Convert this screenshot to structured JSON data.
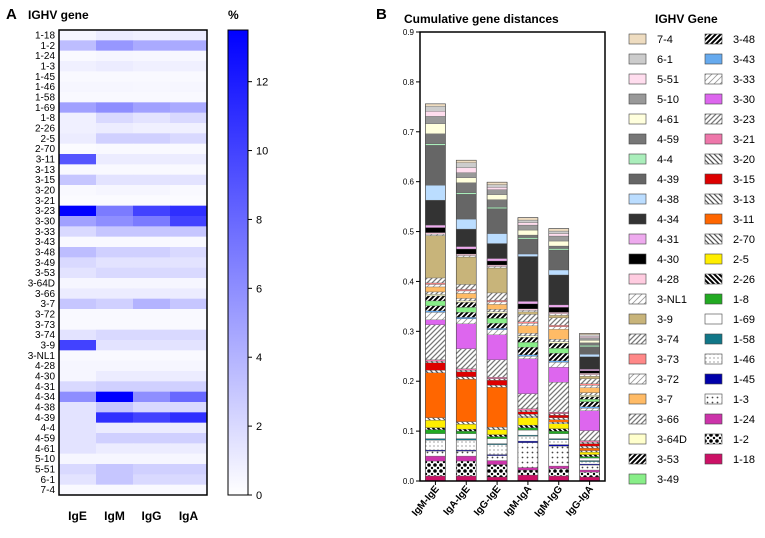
{
  "panels": {
    "a_letter": "A",
    "b_letter": "B"
  },
  "heatmap": {
    "title": "IGHV gene",
    "colorbar_title": "%",
    "colorbar_ticks": [
      0,
      2,
      4,
      6,
      8,
      10,
      12
    ],
    "colorbar_max": 13.5,
    "columns": [
      "IgE",
      "IgM",
      "IgG",
      "IgA"
    ],
    "rows": [
      "1-18",
      "1-2",
      "1-24",
      "1-3",
      "1-45",
      "1-46",
      "1-58",
      "1-69",
      "1-8",
      "2-26",
      "2-5",
      "2-70",
      "3-11",
      "3-13",
      "3-15",
      "3-20",
      "3-21",
      "3-23",
      "3-30",
      "3-33",
      "3-43",
      "3-48",
      "3-49",
      "3-53",
      "3-64D",
      "3-66",
      "3-7",
      "3-72",
      "3-73",
      "3-74",
      "3-9",
      "3-NL1",
      "4-28",
      "4-30",
      "4-31",
      "4-34",
      "4-38",
      "4-39",
      "4-4",
      "4-59",
      "4-61",
      "5-10",
      "5-51",
      "6-1",
      "7-4"
    ],
    "values": [
      [
        0.5,
        1.0,
        0.8,
        1.0
      ],
      [
        3.5,
        5.5,
        4.5,
        4.5
      ],
      [
        0.3,
        0.5,
        0.4,
        0.4
      ],
      [
        0.8,
        1.0,
        0.8,
        0.8
      ],
      [
        0.3,
        0.3,
        0.3,
        0.3
      ],
      [
        0.5,
        0.5,
        0.4,
        0.5
      ],
      [
        0.3,
        0.3,
        0.3,
        0.3
      ],
      [
        5.0,
        6.0,
        5.0,
        4.5
      ],
      [
        0.8,
        2.0,
        1.5,
        2.0
      ],
      [
        0.8,
        1.0,
        0.8,
        0.8
      ],
      [
        1.0,
        2.5,
        2.5,
        2.0
      ],
      [
        0.2,
        0.3,
        0.3,
        0.3
      ],
      [
        9.0,
        1.0,
        1.0,
        1.0
      ],
      [
        0.3,
        0.3,
        0.3,
        0.3
      ],
      [
        3.0,
        1.5,
        1.5,
        1.5
      ],
      [
        0.3,
        0.5,
        0.5,
        0.3
      ],
      [
        0.2,
        0.2,
        0.2,
        0.2
      ],
      [
        13.5,
        7.0,
        10.0,
        11.0
      ],
      [
        5.0,
        6.0,
        7.0,
        10.0
      ],
      [
        2.0,
        3.0,
        3.0,
        3.0
      ],
      [
        0.3,
        0.3,
        0.3,
        0.3
      ],
      [
        3.5,
        2.5,
        2.5,
        2.0
      ],
      [
        2.0,
        1.5,
        1.5,
        1.5
      ],
      [
        1.5,
        2.0,
        2.0,
        2.0
      ],
      [
        0.5,
        0.5,
        0.5,
        0.5
      ],
      [
        1.0,
        1.0,
        1.0,
        1.0
      ],
      [
        3.0,
        2.5,
        4.0,
        3.0
      ],
      [
        0.3,
        0.3,
        0.3,
        0.3
      ],
      [
        0.3,
        0.3,
        0.3,
        0.3
      ],
      [
        1.5,
        2.0,
        2.0,
        2.0
      ],
      [
        10.0,
        1.5,
        1.5,
        1.5
      ],
      [
        0.3,
        0.3,
        0.3,
        0.3
      ],
      [
        0.5,
        0.5,
        0.5,
        0.5
      ],
      [
        0.5,
        1.0,
        1.0,
        1.0
      ],
      [
        2.0,
        2.5,
        2.5,
        2.5
      ],
      [
        6.0,
        13.5,
        6.0,
        8.0
      ],
      [
        1.5,
        3.0,
        2.0,
        2.0
      ],
      [
        1.5,
        11.0,
        10.0,
        11.0
      ],
      [
        1.5,
        1.0,
        1.0,
        1.0
      ],
      [
        1.5,
        2.5,
        2.5,
        2.5
      ],
      [
        1.5,
        1.0,
        1.0,
        1.0
      ],
      [
        0.5,
        0.5,
        0.5,
        0.5
      ],
      [
        2.0,
        3.0,
        2.5,
        2.5
      ],
      [
        1.5,
        3.0,
        2.0,
        2.0
      ],
      [
        0.3,
        0.3,
        0.3,
        0.3
      ]
    ]
  },
  "chart_data": {
    "type": "bar",
    "stacked": true,
    "title": "Cumulative gene distances",
    "legend_title": "IGHV Gene",
    "categories": [
      "IgM-IgE",
      "IgA-IgE",
      "IgG-IgE",
      "IgM-IgA",
      "IgM-IgG",
      "IgG-IgA"
    ],
    "ylim": [
      0,
      0.9
    ],
    "yticks": [
      0.0,
      0.1,
      0.2,
      0.3,
      0.4,
      0.5,
      0.6,
      0.7,
      0.8,
      0.9
    ],
    "ytick_labels": [
      "0.0",
      "0.1",
      "0.2",
      "0.3",
      "0.4",
      "0.5",
      "0.6",
      "0.7",
      "0.8",
      "0.9"
    ],
    "series": [
      {
        "name": "1-18",
        "color": "#cc1166",
        "pattern": "solid",
        "values": [
          0.01,
          0.01,
          0.008,
          0.012,
          0.01,
          0.008
        ]
      },
      {
        "name": "1-2",
        "color": "#ffffff",
        "pattern": "crosshatch",
        "values": [
          0.03,
          0.03,
          0.025,
          0.01,
          0.015,
          0.01
        ]
      },
      {
        "name": "1-24",
        "color": "#cc33aa",
        "pattern": "solid",
        "values": [
          0.01,
          0.01,
          0.008,
          0.005,
          0.005,
          0.004
        ]
      },
      {
        "name": "1-3",
        "color": "#ffffff",
        "pattern": "dotbig",
        "values": [
          0.01,
          0.01,
          0.01,
          0.05,
          0.04,
          0.01
        ]
      },
      {
        "name": "1-45",
        "color": "#0000aa",
        "pattern": "solid",
        "values": [
          0.002,
          0.002,
          0.002,
          0.003,
          0.003,
          0.002
        ]
      },
      {
        "name": "1-46",
        "color": "#ffffff",
        "pattern": "dotsmall",
        "values": [
          0.02,
          0.02,
          0.02,
          0.01,
          0.01,
          0.005
        ]
      },
      {
        "name": "1-58",
        "color": "#117788",
        "pattern": "solid",
        "values": [
          0.003,
          0.003,
          0.002,
          0.002,
          0.002,
          0.002
        ]
      },
      {
        "name": "1-69",
        "color": "#ffffff",
        "pattern": "solid",
        "values": [
          0.01,
          0.01,
          0.01,
          0.01,
          0.01,
          0.005
        ]
      },
      {
        "name": "1-8",
        "color": "#22aa22",
        "pattern": "solid",
        "values": [
          0.008,
          0.005,
          0.004,
          0.005,
          0.005,
          0.003
        ]
      },
      {
        "name": "2-26",
        "color": "#000000",
        "pattern": "hatchboldback",
        "values": [
          0.004,
          0.004,
          0.004,
          0.005,
          0.005,
          0.004
        ]
      },
      {
        "name": "2-5",
        "color": "#ffee00",
        "pattern": "solid",
        "values": [
          0.015,
          0.01,
          0.01,
          0.015,
          0.01,
          0.005
        ]
      },
      {
        "name": "2-70",
        "color": "#555555",
        "pattern": "hatchback",
        "values": [
          0.005,
          0.005,
          0.005,
          0.003,
          0.003,
          0.003
        ]
      },
      {
        "name": "3-11",
        "color": "#ff6600",
        "pattern": "solid",
        "values": [
          0.09,
          0.085,
          0.08,
          0.0,
          0.005,
          0.005
        ]
      },
      {
        "name": "3-13",
        "color": "#555555",
        "pattern": "hatchback",
        "values": [
          0.005,
          0.005,
          0.004,
          0.004,
          0.004,
          0.004
        ]
      },
      {
        "name": "3-15",
        "color": "#dd0000",
        "pattern": "solid",
        "values": [
          0.015,
          0.01,
          0.01,
          0.005,
          0.005,
          0.005
        ]
      },
      {
        "name": "3-20",
        "color": "#666666",
        "pattern": "hatchback",
        "values": [
          0.003,
          0.003,
          0.003,
          0.003,
          0.003,
          0.003
        ]
      },
      {
        "name": "3-21",
        "color": "#ee77aa",
        "pattern": "solid",
        "values": [
          0.003,
          0.003,
          0.003,
          0.003,
          0.003,
          0.003
        ]
      },
      {
        "name": "3-23",
        "color": "#888888",
        "pattern": "hatchfwd",
        "values": [
          0.07,
          0.04,
          0.035,
          0.03,
          0.06,
          0.02
        ]
      },
      {
        "name": "3-30",
        "color": "#dd66ee",
        "pattern": "solid",
        "values": [
          0.01,
          0.05,
          0.05,
          0.07,
          0.03,
          0.04
        ]
      },
      {
        "name": "3-33",
        "color": "#999999",
        "pattern": "hatchsparse",
        "values": [
          0.015,
          0.01,
          0.01,
          0.005,
          0.01,
          0.005
        ]
      },
      {
        "name": "3-43",
        "color": "#66aaee",
        "pattern": "solid",
        "values": [
          0.003,
          0.003,
          0.003,
          0.003,
          0.003,
          0.003
        ]
      },
      {
        "name": "3-48",
        "color": "#000000",
        "pattern": "hatchboldfwd",
        "values": [
          0.01,
          0.01,
          0.01,
          0.015,
          0.015,
          0.01
        ]
      },
      {
        "name": "3-49",
        "color": "#88ee88",
        "pattern": "solid",
        "values": [
          0.01,
          0.01,
          0.01,
          0.01,
          0.01,
          0.005
        ]
      },
      {
        "name": "3-53",
        "color": "#000000",
        "pattern": "hatchboldfwd",
        "values": [
          0.01,
          0.01,
          0.01,
          0.01,
          0.01,
          0.005
        ]
      },
      {
        "name": "3-64D",
        "color": "#ffffcc",
        "pattern": "solid",
        "values": [
          0.003,
          0.003,
          0.003,
          0.003,
          0.003,
          0.003
        ]
      },
      {
        "name": "3-66",
        "color": "#333333",
        "pattern": "hatchfwd",
        "values": [
          0.005,
          0.005,
          0.005,
          0.005,
          0.005,
          0.005
        ]
      },
      {
        "name": "3-7",
        "color": "#ffbb66",
        "pattern": "solid",
        "values": [
          0.01,
          0.01,
          0.01,
          0.015,
          0.02,
          0.01
        ]
      },
      {
        "name": "3-72",
        "color": "#999999",
        "pattern": "hatchsparse",
        "values": [
          0.005,
          0.005,
          0.005,
          0.005,
          0.005,
          0.005
        ]
      },
      {
        "name": "3-73",
        "color": "#ff8888",
        "pattern": "solid",
        "values": [
          0.003,
          0.003,
          0.003,
          0.003,
          0.003,
          0.003
        ]
      },
      {
        "name": "3-74",
        "color": "#888888",
        "pattern": "hatchfwd",
        "values": [
          0.01,
          0.01,
          0.015,
          0.015,
          0.015,
          0.01
        ]
      },
      {
        "name": "3-9",
        "color": "#c8b47a",
        "pattern": "solid",
        "values": [
          0.085,
          0.055,
          0.05,
          0.005,
          0.005,
          0.005
        ]
      },
      {
        "name": "3-NL1",
        "color": "#888888",
        "pattern": "hatchsparse",
        "values": [
          0.003,
          0.003,
          0.003,
          0.003,
          0.003,
          0.003
        ]
      },
      {
        "name": "4-28",
        "color": "#ffcce0",
        "pattern": "solid",
        "values": [
          0.003,
          0.003,
          0.003,
          0.003,
          0.003,
          0.003
        ]
      },
      {
        "name": "4-30",
        "color": "#000000",
        "pattern": "solid",
        "values": [
          0.01,
          0.01,
          0.008,
          0.01,
          0.01,
          0.005
        ]
      },
      {
        "name": "4-31",
        "color": "#eeaaee",
        "pattern": "solid",
        "values": [
          0.005,
          0.005,
          0.005,
          0.005,
          0.005,
          0.003
        ]
      },
      {
        "name": "4-34",
        "color": "#333333",
        "pattern": "solid",
        "values": [
          0.05,
          0.035,
          0.03,
          0.09,
          0.06,
          0.025
        ]
      },
      {
        "name": "4-38",
        "color": "#bbddff",
        "pattern": "solid",
        "values": [
          0.03,
          0.02,
          0.02,
          0.005,
          0.01,
          0.005
        ]
      },
      {
        "name": "4-39",
        "color": "#666666",
        "pattern": "solid",
        "values": [
          0.08,
          0.05,
          0.05,
          0.03,
          0.04,
          0.015
        ]
      },
      {
        "name": "4-4",
        "color": "#aaeebb",
        "pattern": "solid",
        "values": [
          0.003,
          0.003,
          0.003,
          0.003,
          0.003,
          0.003
        ]
      },
      {
        "name": "4-59",
        "color": "#777777",
        "pattern": "solid",
        "values": [
          0.02,
          0.02,
          0.015,
          0.005,
          0.005,
          0.005
        ]
      },
      {
        "name": "4-61",
        "color": "#ffffdd",
        "pattern": "solid",
        "values": [
          0.02,
          0.01,
          0.01,
          0.01,
          0.01,
          0.005
        ]
      },
      {
        "name": "5-10",
        "color": "#999999",
        "pattern": "solid",
        "values": [
          0.015,
          0.01,
          0.01,
          0.01,
          0.01,
          0.005
        ]
      },
      {
        "name": "5-51",
        "color": "#ffddee",
        "pattern": "solid",
        "values": [
          0.01,
          0.01,
          0.005,
          0.005,
          0.005,
          0.003
        ]
      },
      {
        "name": "6-1",
        "color": "#cccccc",
        "pattern": "solid",
        "values": [
          0.01,
          0.01,
          0.005,
          0.005,
          0.005,
          0.003
        ]
      },
      {
        "name": "7-4",
        "color": "#eedcc0",
        "pattern": "solid",
        "values": [
          0.005,
          0.005,
          0.005,
          0.005,
          0.005,
          0.003
        ]
      }
    ],
    "legend_order": [
      "7-4",
      "6-1",
      "5-51",
      "5-10",
      "4-61",
      "4-59",
      "4-4",
      "4-39",
      "4-38",
      "4-34",
      "4-31",
      "4-30",
      "4-28",
      "3-NL1",
      "3-9",
      "3-74",
      "3-73",
      "3-72",
      "3-7",
      "3-66",
      "3-64D",
      "3-53",
      "3-49",
      "3-48",
      "3-43",
      "3-33",
      "3-30",
      "3-23",
      "3-21",
      "3-20",
      "3-15",
      "3-13",
      "3-11",
      "2-70",
      "2-5",
      "2-26",
      "1-8",
      "1-69",
      "1-58",
      "1-46",
      "1-45",
      "1-3",
      "1-24",
      "1-2",
      "1-18"
    ]
  }
}
